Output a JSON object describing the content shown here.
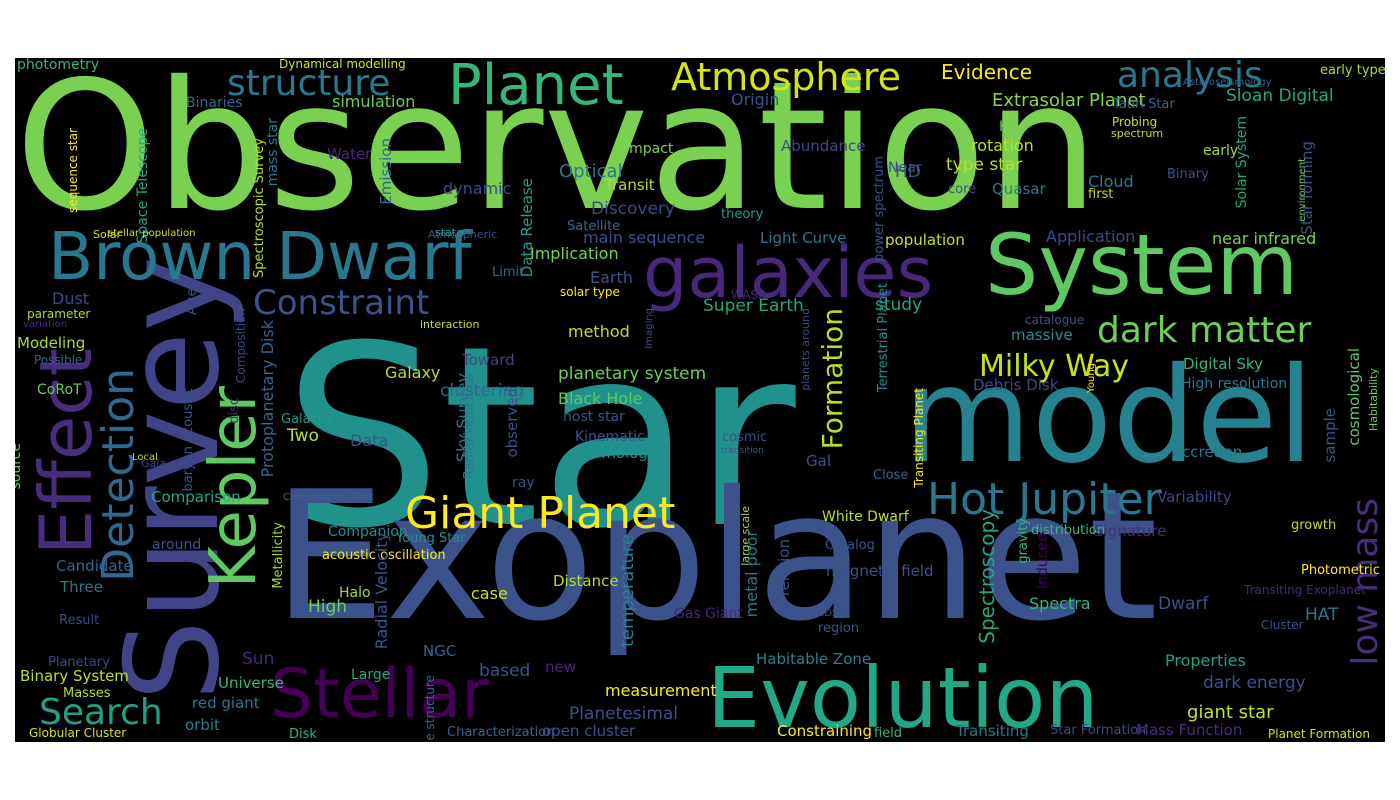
{
  "words": [
    {
      "text": "Star",
      "color": "#21918c"
    },
    {
      "text": "Observation",
      "color": "#7ad151"
    },
    {
      "text": "Exoplanet",
      "color": "#3b528b"
    },
    {
      "text": "System",
      "color": "#5ec962"
    },
    {
      "text": "model",
      "color": "#26828e"
    },
    {
      "text": "Survey",
      "color": "#414487"
    },
    {
      "text": "Evolution",
      "color": "#22a884"
    },
    {
      "text": "Brown Dwarf",
      "color": "#2a788e"
    },
    {
      "text": "galaxies",
      "color": "#482878"
    },
    {
      "text": "Stellar",
      "color": "#440154"
    },
    {
      "text": "Planet",
      "color": "#35b779"
    },
    {
      "text": "Effect",
      "color": "#472d7b"
    },
    {
      "text": "Kepler",
      "color": "#5ec962"
    },
    {
      "text": "Giant Planet",
      "color": "#fde725"
    },
    {
      "text": "Hot Jupiter",
      "color": "#2a788e"
    },
    {
      "text": "Detection",
      "color": "#31688e"
    },
    {
      "text": "Atmosphere",
      "color": "#d2e21b"
    },
    {
      "text": "analysis",
      "color": "#2a788e"
    },
    {
      "text": "structure",
      "color": "#2a788e"
    },
    {
      "text": "dark matter",
      "color": "#6ece58"
    },
    {
      "text": "Constraint",
      "color": "#3b528b"
    },
    {
      "text": "low mass",
      "color": "#472d7b"
    },
    {
      "text": "Formation",
      "color": "#b5de2b"
    },
    {
      "text": "Milky Way",
      "color": "#c8e020"
    },
    {
      "text": "Search",
      "color": "#1fa088"
    },
    {
      "text": "Evidence",
      "color": "#fde725"
    },
    {
      "text": "Extrasolar Planet",
      "color": "#86d549"
    },
    {
      "text": "Sloan Digital",
      "color": "#22a884"
    },
    {
      "text": "simulation",
      "color": "#6ece58"
    },
    {
      "text": "photometry",
      "color": "#35b779"
    },
    {
      "text": "Dynamical modelling",
      "color": "#d2e21b"
    },
    {
      "text": "early type",
      "color": "#aadc32"
    },
    {
      "text": "Binaries",
      "color": "#31688e"
    },
    {
      "text": "Tauri Star",
      "color": "#31688e"
    },
    {
      "text": "Origin",
      "color": "#3b528b"
    },
    {
      "text": "Asteroseismology",
      "color": "#31688e"
    },
    {
      "text": "Probing",
      "color": "#c8e020"
    },
    {
      "text": "spectrum",
      "color": "#bddf26"
    },
    {
      "text": "rotation",
      "color": "#bddf26"
    },
    {
      "text": "K2",
      "color": "#6ece58"
    },
    {
      "text": "Impact",
      "color": "#7ad151"
    },
    {
      "text": "Abundance",
      "color": "#3e4989"
    },
    {
      "text": "Water",
      "color": "#482878"
    },
    {
      "text": "Emission",
      "color": "#31688e"
    },
    {
      "text": "Optical",
      "color": "#2a788e"
    },
    {
      "text": "Transit",
      "color": "#b5de2b"
    },
    {
      "text": "dynamic",
      "color": "#3e4989"
    },
    {
      "text": "Data Release",
      "color": "#1f9e89"
    },
    {
      "text": "type star",
      "color": "#bddf26"
    },
    {
      "text": "Quasar",
      "color": "#2a788e"
    },
    {
      "text": "Cloud",
      "color": "#2a788e"
    },
    {
      "text": "first",
      "color": "#b5de2b"
    },
    {
      "text": "Binary",
      "color": "#3b528b"
    },
    {
      "text": "early",
      "color": "#a0da39"
    },
    {
      "text": "Near",
      "color": "#3e4989"
    },
    {
      "text": "HD",
      "color": "#3b528b"
    },
    {
      "text": "core",
      "color": "#3b528b"
    },
    {
      "text": "mass star",
      "color": "#2a788e"
    },
    {
      "text": "Space Telescope",
      "color": "#22a884"
    },
    {
      "text": "Spectroscopic Survey",
      "color": "#b5de2b"
    },
    {
      "text": "sequence star",
      "color": "#fde725"
    },
    {
      "text": "Discovery",
      "color": "#3e4989"
    },
    {
      "text": "Satellite",
      "color": "#31688e"
    },
    {
      "text": "theory",
      "color": "#1f9e89"
    },
    {
      "text": "main sequence",
      "color": "#3b528b"
    },
    {
      "text": "Light Curve",
      "color": "#2a788e"
    },
    {
      "text": "population",
      "color": "#c8e020"
    },
    {
      "text": "Application",
      "color": "#3e4989"
    },
    {
      "text": "near infrared",
      "color": "#7ad151"
    },
    {
      "text": "Solar System",
      "color": "#22a884"
    },
    {
      "text": "Star forming",
      "color": "#3b528b"
    },
    {
      "text": "environment",
      "color": "#5ec962"
    },
    {
      "text": "Solar",
      "color": "#d2e21b"
    },
    {
      "text": "stellar population",
      "color": "#d2e21b"
    },
    {
      "text": "Atmospheric",
      "color": "#3b528b"
    },
    {
      "text": "state",
      "color": "#1fa088"
    },
    {
      "text": "power spectrum",
      "color": "#3b528b"
    },
    {
      "text": "Implication",
      "color": "#7ad151"
    },
    {
      "text": "Earth",
      "color": "#3b528b"
    },
    {
      "text": "Limit",
      "color": "#31688e"
    },
    {
      "text": "solar type",
      "color": "#fde725"
    },
    {
      "text": "WASP",
      "color": "#482878"
    },
    {
      "text": "Super Earth",
      "color": "#22a884"
    },
    {
      "text": "study",
      "color": "#22a884"
    },
    {
      "text": "catalogue",
      "color": "#3b528b"
    },
    {
      "text": "massive",
      "color": "#21918c"
    },
    {
      "text": "Dust",
      "color": "#3e4989"
    },
    {
      "text": "parameter",
      "color": "#aadc32"
    },
    {
      "text": "variation",
      "color": "#482878"
    },
    {
      "text": "Age",
      "color": "#3e4989"
    },
    {
      "text": "interaction",
      "color": "#c8e020"
    },
    {
      "text": "method",
      "color": "#bddf26"
    },
    {
      "text": "Imaging",
      "color": "#3e4989"
    },
    {
      "text": "Terrestrial Planet",
      "color": "#21918c"
    },
    {
      "text": "planets around",
      "color": "#3e4989"
    },
    {
      "text": "Modeling",
      "color": "#aadc32"
    },
    {
      "text": "Possible",
      "color": "#31688e"
    },
    {
      "text": "Composition",
      "color": "#3e4989"
    },
    {
      "text": "Protoplanetary Disk",
      "color": "#31688e"
    },
    {
      "text": "Toward",
      "color": "#414487"
    },
    {
      "text": "Galaxy",
      "color": "#b5de2b"
    },
    {
      "text": "planetary system",
      "color": "#6ece58"
    },
    {
      "text": "Debris Disk",
      "color": "#3e4989"
    },
    {
      "text": "Digital Sky",
      "color": "#35b779"
    },
    {
      "text": "High resolution",
      "color": "#2a788e"
    },
    {
      "text": "Young",
      "color": "#fde725"
    },
    {
      "text": "cosmological",
      "color": "#5ec962"
    },
    {
      "text": "Habitability",
      "color": "#6ece58"
    },
    {
      "text": "CoRoT",
      "color": "#6ece58"
    },
    {
      "text": "Radial Velocities",
      "color": "#2a788e"
    },
    {
      "text": "clustering",
      "color": "#31688e"
    },
    {
      "text": "Sky Survey",
      "color": "#2a788e"
    },
    {
      "text": "observed",
      "color": "#3b528b"
    },
    {
      "text": "Black Hole",
      "color": "#5ec962"
    },
    {
      "text": "host star",
      "color": "#3b528b"
    },
    {
      "text": "Galactic",
      "color": "#1f9e89"
    },
    {
      "text": "Two",
      "color": "#bddf26"
    },
    {
      "text": "Data",
      "color": "#3b528b"
    },
    {
      "text": "Kinematic",
      "color": "#3b528b"
    },
    {
      "text": "cosmic",
      "color": "#3b528b"
    },
    {
      "text": "cosmology",
      "color": "#21918c"
    },
    {
      "text": "transition",
      "color": "#3b528b"
    },
    {
      "text": "Accretion",
      "color": "#2a788e"
    },
    {
      "text": "sample",
      "color": "#3b528b"
    },
    {
      "text": "baryon acoustic",
      "color": "#3b528b"
    },
    {
      "text": "disc",
      "color": "#472d7b"
    },
    {
      "text": "Local",
      "color": "#b5de2b"
    },
    {
      "text": "Gaia",
      "color": "#3e4989"
    },
    {
      "text": "source",
      "color": "#5ec962"
    },
    {
      "text": "Comparison",
      "color": "#22a884"
    },
    {
      "text": "ray",
      "color": "#3b528b"
    },
    {
      "text": "Gal",
      "color": "#3b528b"
    },
    {
      "text": "Variability",
      "color": "#3e4989"
    },
    {
      "text": "Circumstellar Disk",
      "color": "#31688e"
    },
    {
      "text": "Close",
      "color": "#31688e"
    },
    {
      "text": "Transiting Planet",
      "color": "#fde725"
    },
    {
      "text": "White Dwarf",
      "color": "#bddf26"
    },
    {
      "text": "Spectroscopy",
      "color": "#22a884"
    },
    {
      "text": "distribution",
      "color": "#35b779"
    },
    {
      "text": "Signature",
      "color": "#472d7b"
    },
    {
      "text": "gravity",
      "color": "#35b779"
    },
    {
      "text": "growth",
      "color": "#b5de2b"
    },
    {
      "text": "Companion",
      "color": "#21918c"
    },
    {
      "text": "around",
      "color": "#3b528b"
    },
    {
      "text": "acoustic oscillation",
      "color": "#fde725"
    },
    {
      "text": "Young Star",
      "color": "#21918c"
    },
    {
      "text": "Candidate",
      "color": "#31688e"
    },
    {
      "text": "Radial Velocity",
      "color": "#3b528b"
    },
    {
      "text": "temperature",
      "color": "#26828e"
    },
    {
      "text": "large scale",
      "color": "#aadc32"
    },
    {
      "text": "metal poor",
      "color": "#2a788e"
    },
    {
      "text": "relation",
      "color": "#3b528b"
    },
    {
      "text": "Catalog",
      "color": "#3b528b"
    },
    {
      "text": "magnetic field",
      "color": "#3b528b"
    },
    {
      "text": "induced",
      "color": "#440154"
    },
    {
      "text": "Photometric",
      "color": "#fde725"
    },
    {
      "text": "Three",
      "color": "#2a788e"
    },
    {
      "text": "Distance",
      "color": "#b5de2b"
    },
    {
      "text": "Halo",
      "color": "#a0da39"
    },
    {
      "text": "case",
      "color": "#c8e020"
    },
    {
      "text": "Transiting Exoplanet",
      "color": "#482878"
    },
    {
      "text": "Metallicity",
      "color": "#a0da39"
    },
    {
      "text": "Result",
      "color": "#3e4989"
    },
    {
      "text": "High",
      "color": "#6ece58"
    },
    {
      "text": "Gas Giant",
      "color": "#482878"
    },
    {
      "text": "SDSS",
      "color": "#3b528b"
    },
    {
      "text": "Spectra",
      "color": "#35b779"
    },
    {
      "text": "Dwarf",
      "color": "#3b528b"
    },
    {
      "text": "HAT",
      "color": "#2a788e"
    },
    {
      "text": "region",
      "color": "#3b528b"
    },
    {
      "text": "Cluster",
      "color": "#3b528b"
    },
    {
      "text": "Planetary",
      "color": "#3e4989"
    },
    {
      "text": "Binary System",
      "color": "#bddf26"
    },
    {
      "text": "Masses",
      "color": "#b5de2b"
    },
    {
      "text": "Globular Cluster",
      "color": "#d2e21b"
    },
    {
      "text": "Sun",
      "color": "#482878"
    },
    {
      "text": "NGC",
      "color": "#31688e"
    },
    {
      "text": "Large",
      "color": "#22a884"
    },
    {
      "text": "Universe",
      "color": "#35b779"
    },
    {
      "text": "red giant",
      "color": "#2a788e"
    },
    {
      "text": "orbit",
      "color": "#26828e"
    },
    {
      "text": "scale structure",
      "color": "#31688e"
    },
    {
      "text": "Disk",
      "color": "#35b779"
    },
    {
      "text": "based",
      "color": "#3b528b"
    },
    {
      "text": "new",
      "color": "#482878"
    },
    {
      "text": "measurement",
      "color": "#fde725"
    },
    {
      "text": "Planetesimal",
      "color": "#3b528b"
    },
    {
      "text": "Characterization",
      "color": "#31688e"
    },
    {
      "text": "open cluster",
      "color": "#3b528b"
    },
    {
      "text": "Habitable Zone",
      "color": "#26828e"
    },
    {
      "text": "Constraining",
      "color": "#fde725"
    },
    {
      "text": "field",
      "color": "#35b779"
    },
    {
      "text": "Transiting",
      "color": "#2a788e"
    },
    {
      "text": "Star Formation",
      "color": "#3e4989"
    },
    {
      "text": "Mass Function",
      "color": "#472d7b"
    },
    {
      "text": "Planet Formation",
      "color": "#d2e21b"
    },
    {
      "text": "Properties",
      "color": "#1fa088"
    },
    {
      "text": "dark energy",
      "color": "#3b528b"
    },
    {
      "text": "giant star",
      "color": "#c8e020"
    }
  ]
}
